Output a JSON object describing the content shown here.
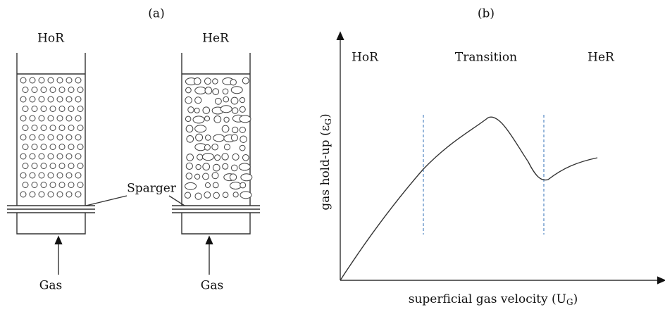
{
  "panel_a": {
    "label": "(a)",
    "left_column": "HoR",
    "right_column": "HeR",
    "sparger": "Sparger",
    "left_gas": "Gas",
    "right_gas": "Gas"
  },
  "panel_b": {
    "label": "(b)",
    "regions": [
      "HoR",
      "Transition",
      "HeR"
    ],
    "y_axis": {
      "text": "gas hold-up (ε",
      "sub": "G",
      "close": ")"
    },
    "x_axis": {
      "text": "superficial gas velocity  (U",
      "sub": "G",
      "close": ")"
    }
  }
}
